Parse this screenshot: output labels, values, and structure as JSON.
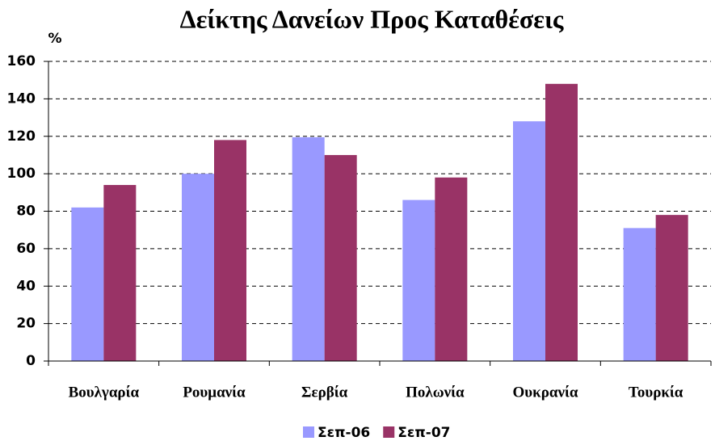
{
  "chart_data": {
    "type": "bar",
    "title": "Δείκτης Δανείων Προς Καταθέσεις",
    "y_label": "%",
    "categories": [
      "Βουλγαρία",
      "Ρουμανία",
      "Σερβία",
      "Πολωνία",
      "Ουκρανία",
      "Τουρκία"
    ],
    "series": [
      {
        "name": "Σεπ-06",
        "color": "#9999ff",
        "values": [
          82,
          100,
          119.5,
          86,
          128,
          71
        ]
      },
      {
        "name": "Σεπ-07",
        "color": "#993366",
        "values": [
          94,
          118,
          110,
          98,
          148,
          78
        ]
      }
    ],
    "ylim": [
      0,
      160
    ],
    "yticks": [
      0,
      20,
      40,
      60,
      80,
      100,
      120,
      140,
      160
    ],
    "grid": true,
    "legend": "bottom"
  }
}
